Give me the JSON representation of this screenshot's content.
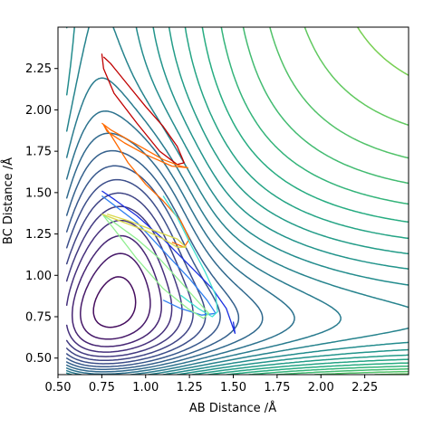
{
  "chart_data": {
    "type": "contour",
    "title": "",
    "xlabel": "AB Distance /Å",
    "ylabel": "BC Distance /Å",
    "xlim": [
      0.5,
      2.5
    ],
    "ylim": [
      0.4,
      2.5
    ],
    "xticks": [
      "0.50",
      "0.75",
      "1.00",
      "1.25",
      "1.50",
      "1.75",
      "2.00",
      "2.25"
    ],
    "yticks": [
      "0.50",
      "0.75",
      "1.00",
      "1.25",
      "1.50",
      "1.75",
      "2.00",
      "2.25"
    ],
    "xtick_values": [
      0.5,
      0.75,
      1.0,
      1.25,
      1.5,
      1.75,
      2.0,
      2.25
    ],
    "ytick_values": [
      0.5,
      0.75,
      1.0,
      1.25,
      1.5,
      1.75,
      2.0,
      2.25
    ],
    "grid": false,
    "colormap": "viridis",
    "contour_level_count": 30,
    "trajectories": [
      {
        "color": "#c00000",
        "points": [
          [
            0.76,
            2.32
          ],
          [
            0.8,
            2.28
          ],
          [
            0.9,
            2.15
          ],
          [
            1.0,
            2.02
          ],
          [
            1.1,
            1.9
          ],
          [
            1.18,
            1.78
          ],
          [
            1.22,
            1.68
          ],
          [
            1.18,
            1.67
          ],
          [
            1.08,
            1.75
          ],
          [
            0.95,
            1.92
          ],
          [
            0.82,
            2.1
          ],
          [
            0.76,
            2.25
          ],
          [
            0.75,
            2.34
          ]
        ]
      },
      {
        "color": "#ff6a00",
        "points": [
          [
            0.75,
            1.92
          ],
          [
            0.8,
            1.88
          ],
          [
            0.9,
            1.82
          ],
          [
            1.0,
            1.76
          ],
          [
            1.1,
            1.7
          ],
          [
            1.2,
            1.66
          ],
          [
            1.24,
            1.65
          ],
          [
            1.15,
            1.66
          ],
          [
            1.0,
            1.73
          ],
          [
            0.88,
            1.8
          ],
          [
            0.78,
            1.87
          ],
          [
            0.76,
            1.91
          ],
          [
            0.8,
            1.85
          ],
          [
            0.9,
            1.68
          ],
          [
            1.0,
            1.55
          ],
          [
            1.1,
            1.45
          ],
          [
            1.2,
            1.33
          ],
          [
            1.25,
            1.22
          ],
          [
            1.22,
            1.17
          ],
          [
            1.15,
            1.2
          ]
        ]
      },
      {
        "color": "#1a2fe0",
        "points": [
          [
            0.75,
            1.51
          ],
          [
            0.82,
            1.46
          ],
          [
            0.95,
            1.36
          ],
          [
            1.1,
            1.22
          ],
          [
            1.25,
            1.06
          ],
          [
            1.38,
            0.92
          ],
          [
            1.46,
            0.8
          ],
          [
            1.51,
            0.65
          ],
          [
            1.5,
            0.72
          ]
        ]
      },
      {
        "color": "#2f7ff0",
        "points": [
          [
            0.75,
            1.48
          ],
          [
            0.8,
            1.44
          ],
          [
            0.95,
            1.32
          ],
          [
            1.1,
            1.15
          ],
          [
            1.25,
            0.98
          ],
          [
            1.35,
            0.85
          ],
          [
            1.4,
            0.77
          ],
          [
            1.32,
            0.76
          ],
          [
            1.2,
            0.8
          ],
          [
            1.1,
            0.85
          ]
        ]
      },
      {
        "color": "#40e0d0",
        "points": [
          [
            1.1,
            1.48
          ],
          [
            1.18,
            1.35
          ],
          [
            1.26,
            1.18
          ],
          [
            1.34,
            1.02
          ],
          [
            1.4,
            0.88
          ],
          [
            1.41,
            0.78
          ],
          [
            1.38,
            0.75
          ],
          [
            1.3,
            0.8
          ],
          [
            1.2,
            0.88
          ]
        ]
      },
      {
        "color": "#90ee90",
        "points": [
          [
            0.75,
            1.37
          ],
          [
            0.82,
            1.32
          ],
          [
            0.95,
            1.22
          ],
          [
            1.08,
            1.1
          ],
          [
            1.2,
            0.96
          ],
          [
            1.3,
            0.84
          ],
          [
            1.36,
            0.77
          ],
          [
            1.33,
            0.74
          ],
          [
            1.24,
            0.8
          ],
          [
            1.1,
            0.92
          ],
          [
            0.95,
            1.1
          ],
          [
            0.82,
            1.28
          ],
          [
            0.76,
            1.36
          ]
        ]
      },
      {
        "color": "#d8d84a",
        "points": [
          [
            0.75,
            1.37
          ],
          [
            0.85,
            1.33
          ],
          [
            1.0,
            1.27
          ],
          [
            1.1,
            1.22
          ],
          [
            1.18,
            1.17
          ],
          [
            1.23,
            1.17
          ],
          [
            1.18,
            1.22
          ],
          [
            1.05,
            1.27
          ],
          [
            0.9,
            1.33
          ],
          [
            0.78,
            1.37
          ]
        ]
      }
    ]
  }
}
